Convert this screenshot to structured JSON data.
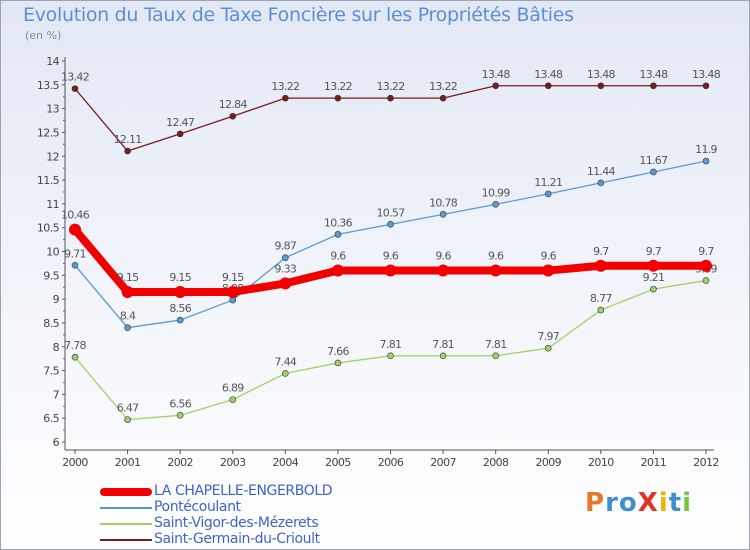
{
  "header": {
    "title": "Evolution du Taux de Taxe Foncière sur les Propriétés Bâties",
    "subtitle": "(en %)"
  },
  "logo": {
    "text": "ProXiti",
    "colors": [
      "#e8772e",
      "#3d8fd1",
      "#3d8fd1",
      "#e2322a",
      "#f0b400",
      "#3d8fd1",
      "#7cc242"
    ]
  },
  "chart_data": {
    "type": "line",
    "title": "Evolution du Taux de Taxe Foncière sur les Propriétés Bâties",
    "ylabel": "(en %)",
    "xlabel": "",
    "x": [
      "2000",
      "2001",
      "2002",
      "2003",
      "2004",
      "2005",
      "2006",
      "2007",
      "2008",
      "2009",
      "2010",
      "2011",
      "2012"
    ],
    "ylim": [
      6,
      14
    ],
    "yticks": [
      6,
      6.5,
      7,
      7.5,
      8,
      8.5,
      9,
      9.5,
      10,
      10.5,
      11,
      11.5,
      12,
      12.5,
      13,
      13.5,
      14
    ],
    "grid": false,
    "legend_position": "bottom-left",
    "series": [
      {
        "name": "Saint-Germain-du-Crioult",
        "color": "#7a1c1c",
        "values": [
          13.42,
          12.11,
          12.47,
          12.84,
          13.22,
          13.22,
          13.22,
          13.22,
          13.48,
          13.48,
          13.48,
          13.48,
          13.48
        ],
        "labels": [
          "13.42",
          "12.11",
          "12.47",
          "12.84",
          "13.22",
          "13.22",
          "13.22",
          "13.22",
          "13.48",
          "13.48",
          "13.48",
          "13.48",
          "13.48"
        ]
      },
      {
        "name": "Pontécoulant",
        "color": "#5b9bd5",
        "values": [
          9.71,
          8.4,
          8.56,
          8.98,
          9.87,
          10.36,
          10.57,
          10.78,
          10.99,
          11.21,
          11.44,
          11.67,
          11.9
        ],
        "labels": [
          "9.71",
          "8.4",
          "8.56",
          "8.98",
          "9.87",
          "10.36",
          "10.57",
          "10.78",
          "10.99",
          "11.21",
          "11.44",
          "11.67",
          "11.9"
        ]
      },
      {
        "name": "Saint-Vigor-des-Mézerets",
        "color": "#9ed36a",
        "values": [
          7.78,
          6.47,
          6.56,
          6.89,
          7.44,
          7.66,
          7.81,
          7.81,
          7.81,
          7.97,
          8.77,
          9.21,
          9.39
        ],
        "labels": [
          "7.78",
          "6.47",
          "6.56",
          "6.89",
          "7.44",
          "7.66",
          "7.81",
          "7.81",
          "7.81",
          "7.97",
          "8.77",
          "9.21",
          "9.39"
        ]
      },
      {
        "name": "LA CHAPELLE-ENGERBOLD",
        "color": "#f20000",
        "values": [
          10.46,
          9.15,
          9.15,
          9.15,
          9.33,
          9.6,
          9.6,
          9.6,
          9.6,
          9.6,
          9.7,
          9.7,
          9.7
        ],
        "labels": [
          "10.46",
          "9.15",
          "9.15",
          "9.15",
          "9.33",
          "9.6",
          "9.6",
          "9.6",
          "9.6",
          "9.6",
          "9.7",
          "9.7",
          "9.7"
        ]
      }
    ],
    "legend": [
      "LA CHAPELLE-ENGERBOLD",
      "Pontécoulant",
      "Saint-Vigor-des-Mézerets",
      "Saint-Germain-du-Crioult"
    ]
  }
}
